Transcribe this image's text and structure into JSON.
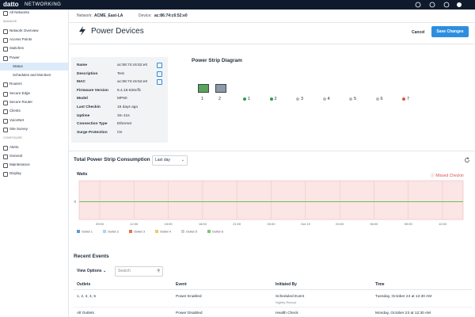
{
  "topbar": {
    "brand": "datto",
    "product": "NETWORKING"
  },
  "sidebar": {
    "items": [
      {
        "label": "All Networks",
        "kind": "link"
      },
      {
        "label": "MANAGE",
        "kind": "section"
      },
      {
        "label": "Network Overview",
        "kind": "link"
      },
      {
        "label": "Access Points",
        "kind": "link"
      },
      {
        "label": "Switches",
        "kind": "link"
      },
      {
        "label": "Power",
        "kind": "open"
      },
      {
        "label": "Status",
        "kind": "active"
      },
      {
        "label": "Schedules and Monitors",
        "kind": "sub"
      },
      {
        "label": "Routers",
        "kind": "link"
      },
      {
        "label": "Secure Edge",
        "kind": "link"
      },
      {
        "label": "Secure Router",
        "kind": "link"
      },
      {
        "label": "Clients",
        "kind": "link"
      },
      {
        "label": "VoiceNet",
        "kind": "link"
      },
      {
        "label": "Site Survey",
        "kind": "link"
      },
      {
        "label": "CONFIGURE",
        "kind": "section"
      },
      {
        "label": "Alerts",
        "kind": "link"
      },
      {
        "label": "General",
        "kind": "link"
      },
      {
        "label": "Maintenance",
        "kind": "link"
      },
      {
        "label": "Display",
        "kind": "link"
      }
    ]
  },
  "header": {
    "network_label": "Network:",
    "network": "ACME_East-LA",
    "device_label": "Device:",
    "device": "ac:86:74:c6:52:e0",
    "title": "Power Devices",
    "cancel": "Cancel",
    "save": "Save Changes"
  },
  "info": {
    "rows": [
      [
        "Name",
        "ac:86:74:c6:52:e0"
      ],
      [
        "Description",
        "Test"
      ],
      [
        "MAC",
        "ac:86:74:c6:52:e0"
      ],
      [
        "Firmware Version",
        "6.4.16-626cffc"
      ],
      [
        "Model",
        "MP60"
      ],
      [
        "Last Checkin",
        "16 days ago"
      ],
      [
        "Uptime",
        "3m 41s"
      ],
      [
        "Connection Type",
        "Ethernet"
      ],
      [
        "Surge Protection",
        "On"
      ]
    ]
  },
  "diagram": {
    "title": "Power Strip Diagram",
    "ports": [
      "1",
      "2"
    ],
    "outlets": [
      {
        "label": "1",
        "state": "on",
        "status": "green"
      },
      {
        "label": "2",
        "state": "on",
        "status": "green"
      },
      {
        "label": "3",
        "state": "off",
        "status": "grey"
      },
      {
        "label": "4",
        "state": "off",
        "status": "grey"
      },
      {
        "label": "5",
        "state": "off",
        "status": "grey"
      },
      {
        "label": "6",
        "state": "off",
        "status": "grey"
      },
      {
        "label": "7",
        "state": "on",
        "status": "red"
      }
    ]
  },
  "consumption": {
    "title": "Total Power Strip Consumption",
    "range": "Last day",
    "axis_label": "Watts",
    "alert": "Missed Checkin",
    "yticks": [
      "0"
    ],
    "xticks": [
      "09:00",
      "12:00",
      "15:00",
      "18:00",
      "21:00",
      "00:00",
      "Oct 19",
      "03:00",
      "06:00",
      "09:00",
      "12:00"
    ],
    "legend": [
      {
        "name": "Outlet 1",
        "color": "#5b9bd5"
      },
      {
        "name": "Outlet 2",
        "color": "#a9d3f5"
      },
      {
        "name": "Outlet 3",
        "color": "#e8734a"
      },
      {
        "name": "Outlet 4",
        "color": "#f2c96b"
      },
      {
        "name": "Outlet 5",
        "color": "#cfcfcf"
      },
      {
        "name": "Outlet 6",
        "color": "#7bc96f"
      }
    ]
  },
  "events": {
    "title": "Recent Events",
    "view_options": "View Options",
    "search": "Search",
    "columns": [
      "Outlets",
      "Event",
      "Initiated By",
      "Time"
    ],
    "rows": [
      {
        "outlets": "1, 2, 3, 4, 5",
        "event": "Power Enabled",
        "by": "Scheduled Event",
        "by_sub": "Nightly Reboot",
        "time": "Tuesday, October 24 at 12:30 AM"
      },
      {
        "outlets": "All Outlets",
        "event": "Power Disabled",
        "by": "Health Check",
        "time": "Monday, October 23 at 12:30 AM"
      }
    ]
  }
}
